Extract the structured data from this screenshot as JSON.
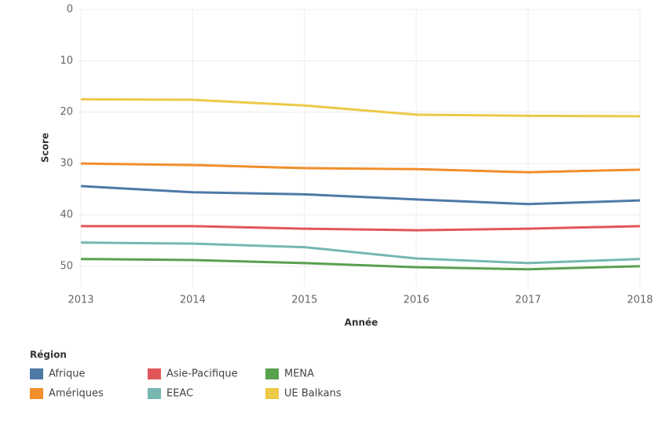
{
  "chart_data": {
    "type": "line",
    "x_label": "Année",
    "y_label": "Score",
    "x": [
      2013,
      2014,
      2015,
      2016,
      2017,
      2018
    ],
    "xlim": [
      2013,
      2018
    ],
    "xticks": [
      2013,
      2014,
      2015,
      2016,
      2017,
      2018
    ],
    "ylim": [
      0,
      54
    ],
    "yticks": [
      0,
      10,
      20,
      30,
      40,
      50
    ],
    "y_reversed": true,
    "grid": true,
    "legend_title": "Région",
    "legend_position": "bottom-left",
    "series": [
      {
        "name": "Afrique",
        "color": "#4e79a7",
        "values": [
          34.4,
          35.6,
          36.0,
          37.0,
          37.9,
          37.2
        ]
      },
      {
        "name": "Amériques",
        "color": "#f28e2b",
        "values": [
          30.0,
          30.3,
          30.9,
          31.1,
          31.7,
          31.2
        ]
      },
      {
        "name": "Asie-Pacifique",
        "color": "#e15759",
        "values": [
          42.2,
          42.2,
          42.7,
          43.0,
          42.7,
          42.2
        ]
      },
      {
        "name": "EEAC",
        "color": "#76b7b2",
        "values": [
          45.4,
          45.6,
          46.3,
          48.5,
          49.4,
          48.6
        ]
      },
      {
        "name": "MENA",
        "color": "#59a14f",
        "values": [
          48.6,
          48.8,
          49.4,
          50.2,
          50.6,
          50.0
        ]
      },
      {
        "name": "UE Balkans",
        "color": "#edc948",
        "values": [
          17.5,
          17.6,
          18.7,
          20.5,
          20.7,
          20.8
        ]
      }
    ]
  }
}
